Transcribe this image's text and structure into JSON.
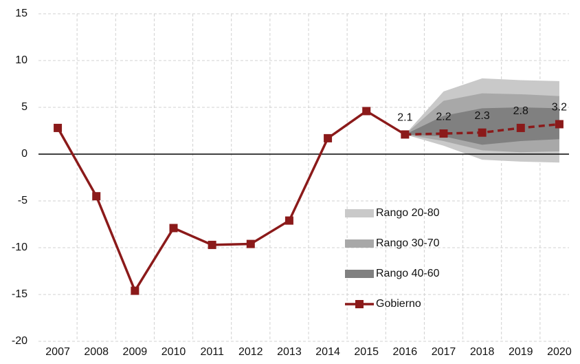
{
  "chart_data": {
    "type": "fan",
    "categories": [
      "2007",
      "2008",
      "2009",
      "2010",
      "2011",
      "2012",
      "2013",
      "2014",
      "2015",
      "2016",
      "2017",
      "2018",
      "2019",
      "2020"
    ],
    "ylim": [
      -20,
      15
    ],
    "yticks": [
      -20,
      -15,
      -10,
      -5,
      0,
      5,
      10,
      15
    ],
    "grid": true,
    "forecast_start": "2016",
    "bands": [
      {
        "name": "Rango 20-80",
        "color": "#c9c9c9",
        "upper": [
          null,
          null,
          null,
          null,
          null,
          null,
          null,
          null,
          null,
          2.1,
          6.7,
          8.1,
          7.9,
          7.8
        ],
        "lower": [
          null,
          null,
          null,
          null,
          null,
          null,
          null,
          null,
          null,
          2.1,
          0.9,
          -0.6,
          -0.8,
          -0.9
        ]
      },
      {
        "name": "Rango 30-70",
        "color": "#a8a8a8",
        "upper": [
          null,
          null,
          null,
          null,
          null,
          null,
          null,
          null,
          null,
          2.1,
          5.7,
          6.5,
          6.4,
          6.2
        ],
        "lower": [
          null,
          null,
          null,
          null,
          null,
          null,
          null,
          null,
          null,
          2.1,
          1.4,
          0.4,
          0.2,
          0.3
        ]
      },
      {
        "name": "Rango 40-60",
        "color": "#808080",
        "upper": [
          null,
          null,
          null,
          null,
          null,
          null,
          null,
          null,
          null,
          2.1,
          4.1,
          4.9,
          5.0,
          4.9
        ],
        "lower": [
          null,
          null,
          null,
          null,
          null,
          null,
          null,
          null,
          null,
          2.1,
          1.9,
          1.0,
          1.4,
          1.6
        ]
      }
    ],
    "series": [
      {
        "name": "Gobierno",
        "color": "#8b1a1a",
        "values": [
          2.8,
          -4.5,
          -14.6,
          -7.9,
          -9.7,
          -9.6,
          -7.1,
          1.7,
          4.6,
          2.1,
          2.2,
          2.3,
          2.8,
          3.2
        ]
      }
    ]
  }
}
